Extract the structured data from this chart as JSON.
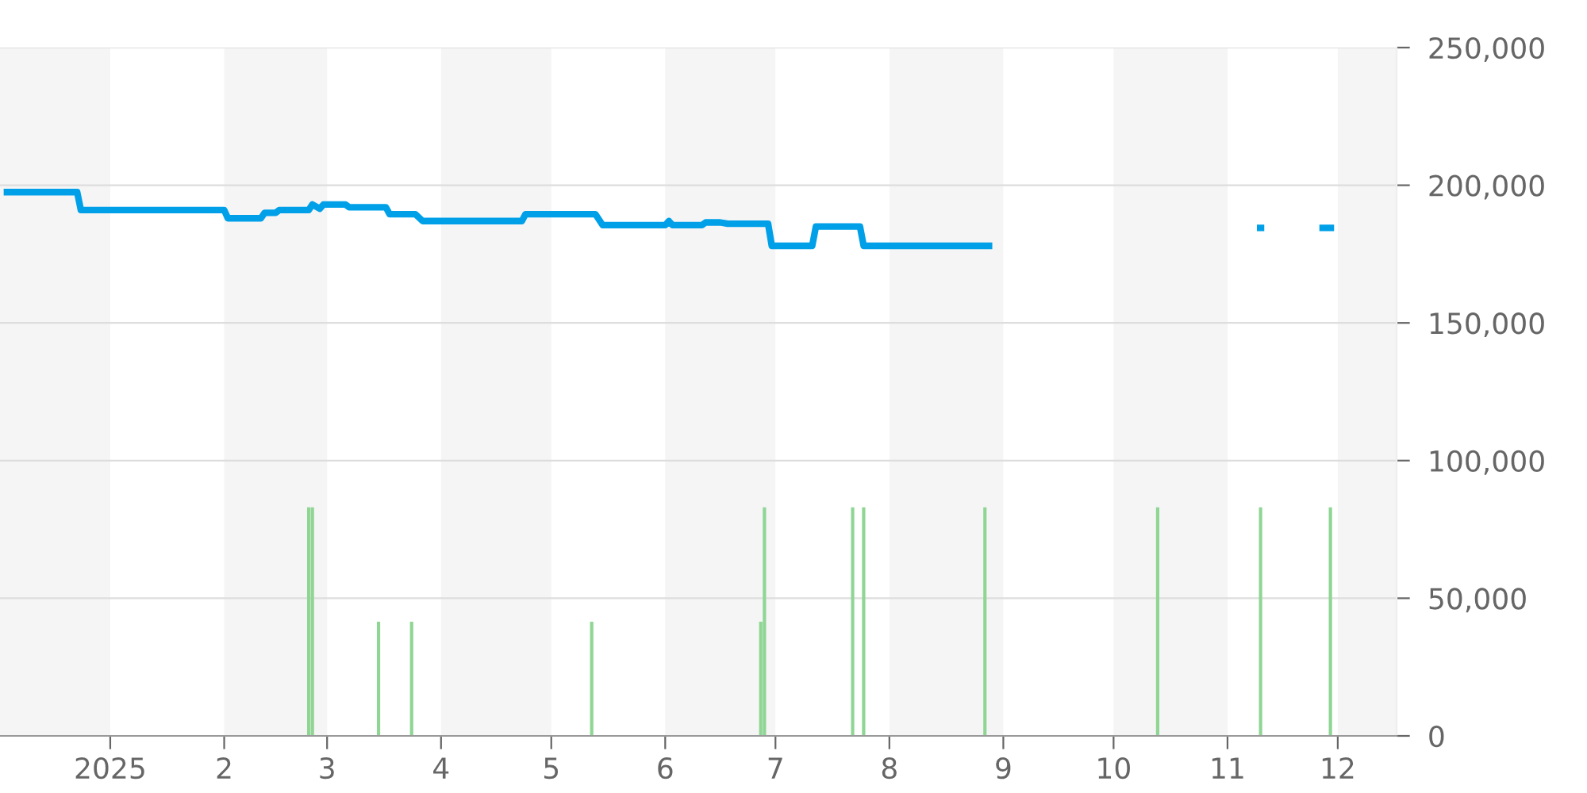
{
  "chart_data": {
    "type": "line",
    "xlim": [
      "2024-12-02",
      "2025-12-17"
    ],
    "xticks": [
      {
        "value": "2025-01-01",
        "label": "2025"
      },
      {
        "value": "2025-02-01",
        "label": "2"
      },
      {
        "value": "2025-03-01",
        "label": "3"
      },
      {
        "value": "2025-04-01",
        "label": "4"
      },
      {
        "value": "2025-05-01",
        "label": "5"
      },
      {
        "value": "2025-06-01",
        "label": "6"
      },
      {
        "value": "2025-07-01",
        "label": "7"
      },
      {
        "value": "2025-08-01",
        "label": "8"
      },
      {
        "value": "2025-09-01",
        "label": "9"
      },
      {
        "value": "2025-10-01",
        "label": "10"
      },
      {
        "value": "2025-11-01",
        "label": "11"
      },
      {
        "value": "2025-12-01",
        "label": "12"
      }
    ],
    "ylim": [
      0,
      250000
    ],
    "yticks": [
      {
        "value": 0,
        "label": "0"
      },
      {
        "value": 50000,
        "label": "50,000"
      },
      {
        "value": 100000,
        "label": "100,000"
      },
      {
        "value": 150000,
        "label": "150,000"
      },
      {
        "value": 200000,
        "label": "200,000"
      },
      {
        "value": 250000,
        "label": "250,000"
      }
    ],
    "grid": "y",
    "marker": "none",
    "line_style": "solid",
    "bands": [
      {
        "axis": "x",
        "from": "2024-12-02",
        "to": "2025-01-01",
        "color": "#f5f5f5"
      },
      {
        "axis": "x",
        "from": "2025-02-01",
        "to": "2025-03-01",
        "color": "#f5f5f5"
      },
      {
        "axis": "x",
        "from": "2025-04-01",
        "to": "2025-05-01",
        "color": "#f5f5f5"
      },
      {
        "axis": "x",
        "from": "2025-06-01",
        "to": "2025-07-01",
        "color": "#f5f5f5"
      },
      {
        "axis": "x",
        "from": "2025-08-01",
        "to": "2025-09-01",
        "color": "#f5f5f5"
      },
      {
        "axis": "x",
        "from": "2025-10-01",
        "to": "2025-11-01",
        "color": "#f5f5f5"
      },
      {
        "axis": "x",
        "from": "2025-12-01",
        "to": "2025-12-17",
        "color": "#f5f5f5"
      }
    ],
    "series": [
      {
        "type": "bar",
        "color": "#8fd694",
        "x": [
          "2025-02-24",
          "2025-02-25",
          "2025-03-15",
          "2025-03-24",
          "2025-05-12",
          "2025-06-27",
          "2025-06-28",
          "2025-07-22",
          "2025-07-25",
          "2025-08-27",
          "2025-10-13",
          "2025-11-10",
          "2025-11-29"
        ],
        "values": [
          83000,
          83000,
          41500,
          41500,
          41500,
          41500,
          83000,
          83000,
          83000,
          83000,
          83000,
          83000,
          83000
        ]
      },
      {
        "color": "#00a0e9",
        "x": [
          "2024-12-03",
          "2024-12-23",
          "2024-12-24",
          "2025-02-01",
          "2025-02-02",
          "2025-02-11",
          "2025-02-12",
          "2025-02-15",
          "2025-02-16",
          "2025-02-24",
          "2025-02-25",
          "2025-02-27",
          "2025-02-28",
          "2025-03-06",
          "2025-03-07",
          "2025-03-17",
          "2025-03-18",
          "2025-03-25",
          "2025-03-27",
          "2025-04-23",
          "2025-04-24",
          "2025-05-13",
          "2025-05-15",
          "2025-06-01",
          "2025-06-02",
          "2025-06-03",
          "2025-06-11",
          "2025-06-12",
          "2025-06-16",
          "2025-06-18",
          "2025-06-29",
          "2025-06-30",
          "2025-07-11",
          "2025-07-12",
          "2025-07-24",
          "2025-07-25",
          "2025-08-29",
          "2025-08-30",
          "2025-11-09",
          "2025-11-11",
          "2025-11-12",
          "2025-11-26",
          "2025-11-30"
        ],
        "values": [
          197500,
          197500,
          191000,
          191000,
          188000,
          188000,
          190000,
          190000,
          191000,
          191000,
          193000,
          191500,
          193000,
          193000,
          192000,
          192000,
          189500,
          189500,
          187000,
          187000,
          189500,
          189500,
          185500,
          185500,
          187000,
          185500,
          185500,
          186500,
          186500,
          186000,
          186000,
          178000,
          178000,
          185000,
          185000,
          178000,
          178000,
          null,
          184500,
          184500,
          null,
          184500,
          184500
        ]
      }
    ]
  }
}
